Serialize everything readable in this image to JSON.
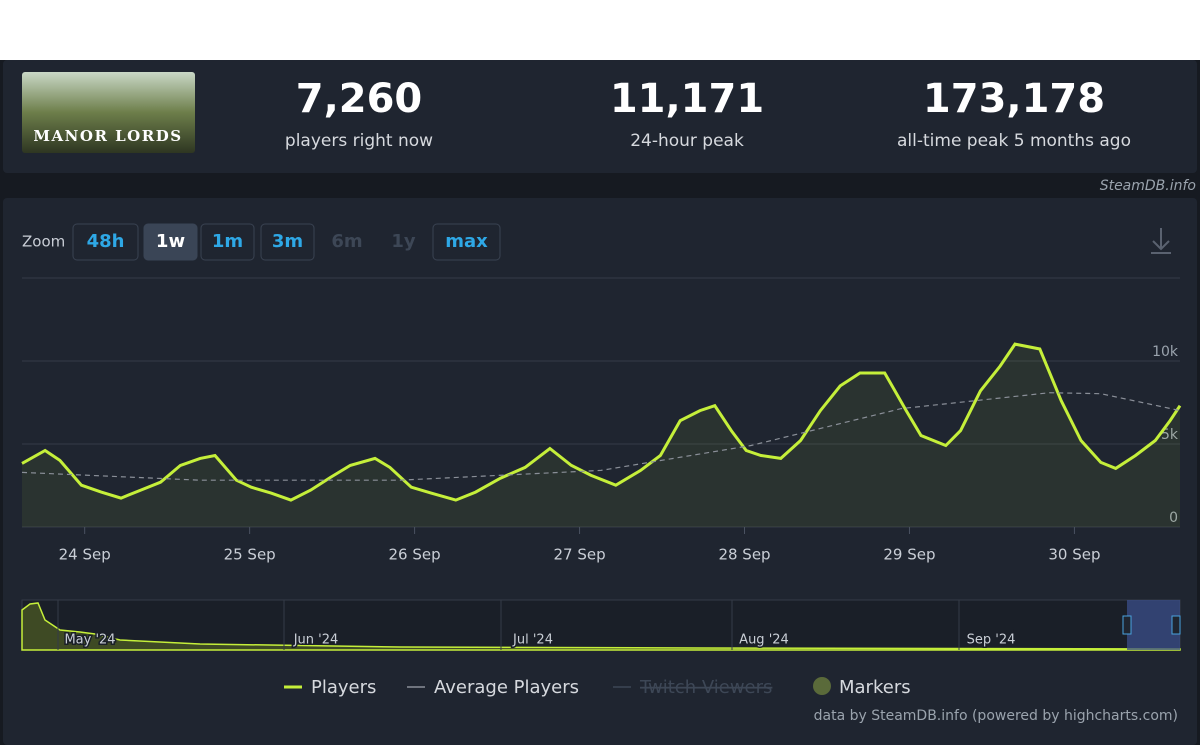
{
  "header": {
    "game": "MANOR LORDS",
    "stats": [
      {
        "value": "7,260",
        "label": "players right now"
      },
      {
        "value": "11,171",
        "label": "24-hour peak"
      },
      {
        "value": "173,178",
        "label": "all-time peak 5 months ago"
      }
    ],
    "source": "SteamDB.info"
  },
  "zoom": {
    "label": "Zoom",
    "buttons": [
      "48h",
      "1w",
      "1m",
      "3m",
      "6m",
      "1y",
      "max"
    ]
  },
  "chart_data": {
    "type": "line",
    "x": [
      -0.38,
      -0.24,
      -0.15,
      -0.02,
      0.1,
      0.22,
      0.34,
      0.46,
      0.58,
      0.7,
      0.79,
      0.92,
      1.01,
      1.13,
      1.25,
      1.37,
      1.49,
      1.61,
      1.76,
      1.85,
      1.98,
      2.1,
      2.25,
      2.37,
      2.52,
      2.67,
      2.82,
      2.95,
      3.07,
      3.22,
      3.37,
      3.49,
      3.61,
      3.73,
      3.82,
      3.92,
      4.01,
      4.1,
      4.22,
      4.34,
      4.46,
      4.58,
      4.7,
      4.85,
      4.98,
      5.07,
      5.22,
      5.31,
      5.43,
      5.55,
      5.64,
      5.79,
      5.92,
      6.04,
      6.16,
      6.25,
      6.37,
      6.49,
      6.58,
      6.64
    ],
    "series": [
      {
        "name": "Players",
        "color": "#c5ef3a",
        "values": [
          3830,
          4610,
          4010,
          2520,
          2100,
          1740,
          2220,
          2700,
          3710,
          4130,
          4310,
          2820,
          2400,
          2040,
          1620,
          2220,
          2990,
          3710,
          4130,
          3590,
          2400,
          2040,
          1620,
          2100,
          2940,
          3590,
          4730,
          3710,
          3110,
          2520,
          3410,
          4310,
          6410,
          7010,
          7310,
          5810,
          4610,
          4310,
          4130,
          5210,
          7010,
          8500,
          9280,
          9280,
          7010,
          5510,
          4910,
          5810,
          8200,
          9700,
          11020,
          10720,
          7610,
          5210,
          3890,
          3530,
          4310,
          5210,
          6410,
          7310
        ]
      },
      {
        "name": "Average Players",
        "color": "#8a8f98",
        "x": [
          -0.38,
          0.7,
          1.91,
          3.13,
          4.04,
          4.95,
          5.85,
          6.16,
          6.64
        ],
        "values": [
          3290,
          2820,
          2820,
          3410,
          4910,
          7130,
          8090,
          8030,
          7010
        ]
      }
    ],
    "legend_extra": [
      "Twitch Viewers",
      "Markers"
    ],
    "xlim": [
      -0.38,
      6.64
    ],
    "xticks": [
      {
        "value": 0,
        "label": "24 Sep"
      },
      {
        "value": 1,
        "label": "25 Sep"
      },
      {
        "value": 2,
        "label": "26 Sep"
      },
      {
        "value": 3,
        "label": "27 Sep"
      },
      {
        "value": 4,
        "label": "28 Sep"
      },
      {
        "value": 5,
        "label": "29 Sep"
      },
      {
        "value": 6,
        "label": "30 Sep"
      }
    ],
    "ylim": [
      0,
      15000
    ],
    "yticks": [
      {
        "value": 0,
        "label": "0"
      },
      {
        "value": 5000,
        "label": "5k"
      },
      {
        "value": 10000,
        "label": "10k"
      }
    ],
    "grid": true
  },
  "navigator": {
    "labels": [
      "May '24",
      "Jun '24",
      "Jul '24",
      "Aug '24",
      "Sep '24"
    ]
  },
  "credits": "data by SteamDB.info (powered by highcharts.com)"
}
